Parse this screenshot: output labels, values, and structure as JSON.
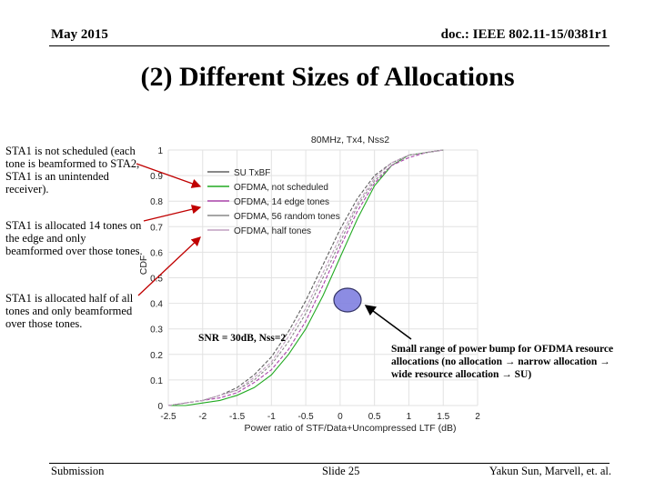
{
  "header": {
    "date": "May 2015",
    "doc_id": "doc.: IEEE 802.11-15/0381r1"
  },
  "title": "(2) Different Sizes of Allocations",
  "annotations": {
    "left_notes": [
      "STA1 is not scheduled (each tone is beamformed to STA2, STA1 is an unintended receiver).",
      "STA1 is allocated 14 tones on the edge and only beamformed over those tones.",
      "STA1 is allocated half of all tones and only beamformed over those tones."
    ],
    "snr_label": "SNR = 30dB, Nss=2",
    "right_note": "Small range of power bump for OFDMA resource allocations (no allocation → narrow allocation → wide resource allocation → SU)"
  },
  "footer": {
    "left": "Submission",
    "center": "Slide 25",
    "right": "Yakun Sun, Marvell, et. al."
  },
  "colors": {
    "annotation_arrow": "#c00000",
    "circle_fill": "#8080e0",
    "su": "#606060",
    "not_scheduled": "#22aa22",
    "edge_tones": "#aa44aa",
    "random_tones": "#888888",
    "half_tones": "#c0a0c0"
  },
  "chart_data": {
    "type": "line",
    "title": "80MHz, Tx4, Nss2",
    "xlabel": "Power ratio of STF/Data+Uncompressed LTF (dB)",
    "ylabel": "CDF",
    "xlim": [
      -2.5,
      2
    ],
    "ylim": [
      0,
      1
    ],
    "xticks": [
      "-2.5",
      "-2",
      "-1.5",
      "-1",
      "-0.5",
      "0",
      "0.5",
      "1",
      "1.5",
      "2"
    ],
    "yticks": [
      "0",
      "0.1",
      "0.2",
      "0.3",
      "0.4",
      "0.5",
      "0.6",
      "0.7",
      "0.8",
      "0.9",
      "1"
    ],
    "grid": true,
    "legend": "top-left",
    "x": [
      -2.5,
      -2.25,
      -2,
      -1.75,
      -1.5,
      -1.25,
      -1,
      -0.75,
      -0.5,
      -0.25,
      0,
      0.25,
      0.5,
      0.75,
      1,
      1.25,
      1.5
    ],
    "series": [
      {
        "name": "SU TxBF",
        "color": "#606060",
        "values": [
          0.0,
          0.01,
          0.02,
          0.04,
          0.07,
          0.12,
          0.19,
          0.29,
          0.41,
          0.55,
          0.69,
          0.81,
          0.9,
          0.95,
          0.98,
          0.99,
          1.0
        ]
      },
      {
        "name": "OFDMA, not scheduled",
        "color": "#22aa22",
        "values": [
          0.0,
          0.0,
          0.01,
          0.02,
          0.04,
          0.07,
          0.12,
          0.2,
          0.3,
          0.43,
          0.58,
          0.73,
          0.86,
          0.94,
          0.98,
          0.99,
          1.0
        ]
      },
      {
        "name": "OFDMA, 14 edge tones",
        "color": "#aa44aa",
        "values": [
          0.0,
          0.01,
          0.02,
          0.03,
          0.05,
          0.09,
          0.14,
          0.22,
          0.33,
          0.47,
          0.62,
          0.76,
          0.87,
          0.94,
          0.97,
          0.99,
          1.0
        ]
      },
      {
        "name": "OFDMA, 56 random tones",
        "color": "#888888",
        "values": [
          0.0,
          0.01,
          0.02,
          0.04,
          0.06,
          0.1,
          0.16,
          0.25,
          0.36,
          0.5,
          0.64,
          0.78,
          0.88,
          0.94,
          0.98,
          0.99,
          1.0
        ]
      },
      {
        "name": "OFDMA, half tones",
        "color": "#c0a0c0",
        "values": [
          0.0,
          0.01,
          0.02,
          0.04,
          0.06,
          0.11,
          0.17,
          0.27,
          0.38,
          0.52,
          0.66,
          0.79,
          0.89,
          0.95,
          0.98,
          0.99,
          1.0
        ]
      }
    ]
  }
}
